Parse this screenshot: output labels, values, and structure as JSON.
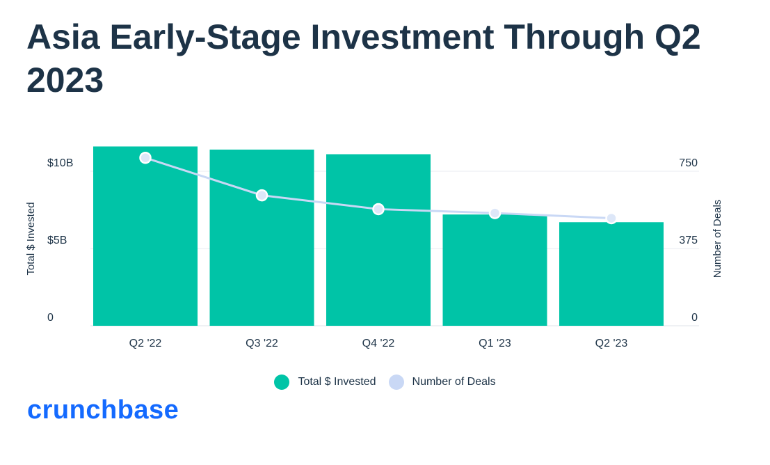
{
  "title": "Asia Early-Stage Investment Through Q2 2023",
  "brand": {
    "logo_text": "crunchbase",
    "logo_color": "#146aff"
  },
  "chart_data": {
    "type": "bar",
    "title": "Asia Early-Stage Investment Through Q2 2023",
    "categories": [
      "Q2 '22",
      "Q3 '22",
      "Q4 '22",
      "Q1 '23",
      "Q2 '23"
    ],
    "series": [
      {
        "name": "Total $ Invested",
        "type": "bar",
        "axis": "left",
        "color": "#00c4a7",
        "values": [
          11.6,
          11.4,
          11.1,
          7.2,
          6.7
        ]
      },
      {
        "name": "Number of Deals",
        "type": "line",
        "axis": "right",
        "color": "#c9d8f5",
        "values": [
          815,
          633,
          566,
          547,
          522
        ]
      }
    ],
    "left_axis": {
      "label": "Total $ Invested",
      "range": [
        0,
        11.8
      ],
      "ticks": [
        {
          "value": 0,
          "label": "0"
        },
        {
          "value": 5,
          "label": "$5B"
        },
        {
          "value": 10,
          "label": "$10B"
        }
      ]
    },
    "right_axis": {
      "label": "Number of Deals",
      "range": [
        0,
        885
      ],
      "ticks": [
        {
          "value": 0,
          "label": "0"
        },
        {
          "value": 375,
          "label": "375"
        },
        {
          "value": 750,
          "label": "750"
        }
      ]
    },
    "grid": true,
    "legend_position": "bottom-center"
  }
}
